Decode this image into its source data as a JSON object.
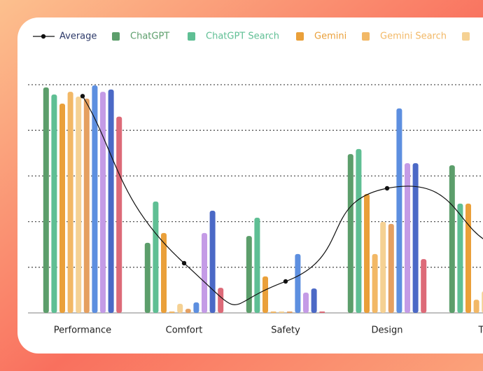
{
  "chart_data": {
    "type": "bar",
    "categories": [
      "Performance",
      "Comfort",
      "Safety",
      "Design",
      "Tech"
    ],
    "ylim": [
      0,
      100
    ],
    "yticks": [
      20,
      40,
      60,
      80,
      100
    ],
    "grid": true,
    "series": [
      {
        "name": "Average",
        "type": "line",
        "color": "#111111",
        "values": [
          95,
          21.8,
          13.8,
          54.6,
          31
        ]
      },
      {
        "name": "ChatGPT",
        "color": "#5c9e6b",
        "values": [
          98.8,
          30.7,
          33.7,
          69.6,
          64.7
        ]
      },
      {
        "name": "ChatGPT Search",
        "color": "#5fbf94",
        "values": [
          95.7,
          48.8,
          41.7,
          71.8,
          47.9
        ]
      },
      {
        "name": "Gemini",
        "color": "#eaa03a",
        "values": [
          91.7,
          35,
          16,
          52.1,
          47.9
        ]
      },
      {
        "name": "Gemini Search",
        "color": "#f2b866",
        "values": [
          96.9,
          0.6,
          0.6,
          25.8,
          5.8
        ]
      },
      {
        "color": "#f5d193",
        "values": [
          94.8,
          4,
          0.6,
          39.9,
          9.5
        ]
      },
      {
        "color": "#e5a060",
        "values": [
          93.9,
          1.8,
          0.6,
          39,
          null
        ]
      },
      {
        "color": "#5d8fe0",
        "values": [
          99.7,
          4.6,
          25.8,
          89.6,
          null
        ]
      },
      {
        "color": "#c49be6",
        "values": [
          96.9,
          35,
          8.9,
          65.6,
          null
        ]
      },
      {
        "color": "#4b69c6",
        "values": [
          97.9,
          44.8,
          10.7,
          65.6,
          null
        ]
      },
      {
        "color": "#dd6a78",
        "values": [
          86,
          11,
          0.6,
          23.6,
          null
        ]
      }
    ]
  }
}
